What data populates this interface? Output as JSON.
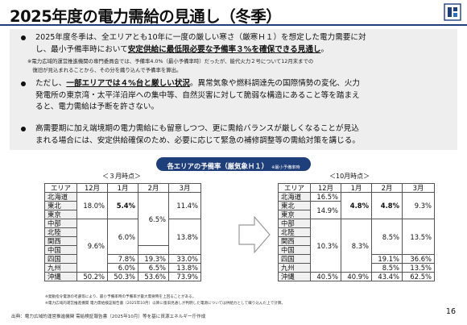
{
  "title": "2025年度の電力需給の見通し（冬季）",
  "page_number": "16",
  "bullets": {
    "b1_lines": [
      {
        "pre": "2025年度冬季は、全エリアとも10年に一度の厳しい寒さ（厳寒Ｈ１）を想定した電力需要に対",
        "em": "",
        "post": ""
      },
      {
        "pre": "し、最小予備率時において",
        "em": "安定供給に最低限必要な予備率３%を確保できる見通し",
        "post": "。"
      }
    ],
    "note_lines": [
      "※電力広域的運営推進機関の専門委員会では、予備率4.0%（最小予備率時）だったが、能代火力２号について12月末までの",
      "　復旧が見込まれることから、その分を織り込んで予備率を算出。"
    ],
    "b2_lines": [
      {
        "pre": "ただし、",
        "em": "一部エリアでは４%台と厳しい状況",
        "post": "。異常気象や燃料調達先の国際情勢の変化、火力"
      },
      {
        "pre": "発電所の東京湾・太平洋沿岸への集中等、自然災害に対して脆弱な構造にあること等を踏まえ",
        "em": "",
        "post": ""
      },
      {
        "pre": "ると、電力需給は予断を許さない。",
        "em": "",
        "post": ""
      }
    ],
    "b3_lines": [
      {
        "pre": "高需要期に加え端境期の電力需給にも留意しつつ、更に需給バランスが厳しくなることが見込",
        "em": "",
        "post": ""
      },
      {
        "pre": "まれる場合には、安定供給確保のため、必要に応じて緊急の補修調整等の需給対策を講じる。",
        "em": "",
        "post": ""
      }
    ]
  },
  "pill": {
    "main": "各エリアの予備率（厳気象Ｈ１）",
    "small": "※最小予備率時"
  },
  "left_table": {
    "caption": "＜３月時点＞",
    "headers": [
      "エリア",
      "12月",
      "1月",
      "2月",
      "3月"
    ],
    "areas": [
      "北海道",
      "東北",
      "東京",
      "中部",
      "北陸",
      "関西",
      "中国",
      "四国",
      "九州",
      "沖縄"
    ],
    "cells": {
      "dec_top": "18.0%",
      "dec_mid": "9.6%",
      "dec_ok": "50.2%",
      "jan_top": "5.4%",
      "jan_mid": "6.0%",
      "jan_sk": "7.8%",
      "jan_ky": "6.0%",
      "jan_ok": "50.3%",
      "feb_mid": "6.5%",
      "feb_sk": "19.3%",
      "feb_ky": "6.5%",
      "feb_ok": "53.6%",
      "mar_top": "11.4%",
      "mar_mid": "13.8%",
      "mar_sk": "33.0%",
      "mar_ky": "13.8%",
      "mar_ok": "73.9%"
    }
  },
  "right_table": {
    "caption": "＜10月時点＞",
    "headers": [
      "エリア",
      "12月",
      "1月",
      "2月",
      "3月"
    ],
    "areas": [
      "北海道",
      "東北",
      "東京",
      "中部",
      "北陸",
      "関西",
      "中国",
      "四国",
      "九州",
      "沖縄"
    ],
    "cells": {
      "dec_hk": "16.5%",
      "dec_top": "14.9%",
      "dec_mid": "10.3%",
      "dec_ok": "40.5%",
      "jan_top": "4.8%",
      "jan_mid": "8.3%",
      "jan_ok": "40.9%",
      "feb_top": "4.8%",
      "feb_mid": "8.5%",
      "feb_sk": "19.1%",
      "feb_ky": "8.5%",
      "feb_ok": "43.4%",
      "mar_top": "9.3%",
      "mar_mid": "13.5%",
      "mar_sk": "36.6%",
      "mar_ky": "13.5%",
      "mar_ok": "62.5%"
    }
  },
  "footnotes": [
    "※発動指令電源の考慮等により、最小予備率時の予備率が最大需要時を上回ることがある。",
    "※電力広域的運営推進機関 電力需給検証報告書（2025年10月）以降に復旧見通しが判明した電源については供給力として織り込んだ上で計算。"
  ],
  "source": "出典：電力広域的運営推進機関 需給検証報告書（2025年10月）等を基に資源エネルギー庁作成",
  "colors": {
    "accent": "#1f3f7a",
    "panel": "#eeeeee"
  }
}
